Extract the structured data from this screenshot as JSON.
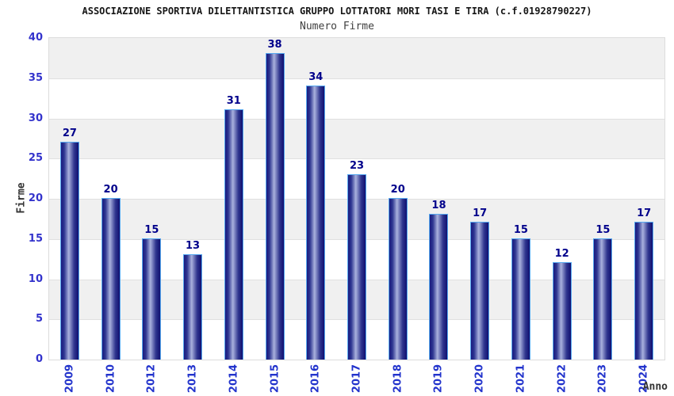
{
  "chart_data": {
    "type": "bar",
    "title": "ASSOCIAZIONE SPORTIVA DILETTANTISTICA GRUPPO LOTTATORI MORI TASI E TIRA (c.f.01928790227)",
    "subtitle": "Numero Firme",
    "xlabel": "Anno",
    "ylabel": "Firme",
    "categories": [
      "2009",
      "2010",
      "2012",
      "2013",
      "2014",
      "2015",
      "2016",
      "2017",
      "2018",
      "2019",
      "2020",
      "2021",
      "2022",
      "2023",
      "2024"
    ],
    "values": [
      27,
      20,
      15,
      13,
      31,
      38,
      34,
      23,
      20,
      18,
      17,
      15,
      12,
      15,
      17
    ],
    "ylim": [
      0,
      40
    ],
    "y_tick_step": 5,
    "y_ticks": [
      0,
      5,
      10,
      15,
      20,
      25,
      30,
      35,
      40
    ],
    "grid": "horizontal gridlines every 5 with alternating gray bands",
    "legend": "none",
    "colors": {
      "bar_dark": "#191a7f",
      "bar_light": "#a9b1dd",
      "bar_border": "#56a9f0",
      "tick_label_blue": "#3333cc",
      "value_label": "#00008b",
      "band_gray": "#f0f0f0",
      "gridline": "#e0e0e0",
      "axis_label": "#333333",
      "title_color": "#161616",
      "subtitle_color": "#404040"
    }
  }
}
